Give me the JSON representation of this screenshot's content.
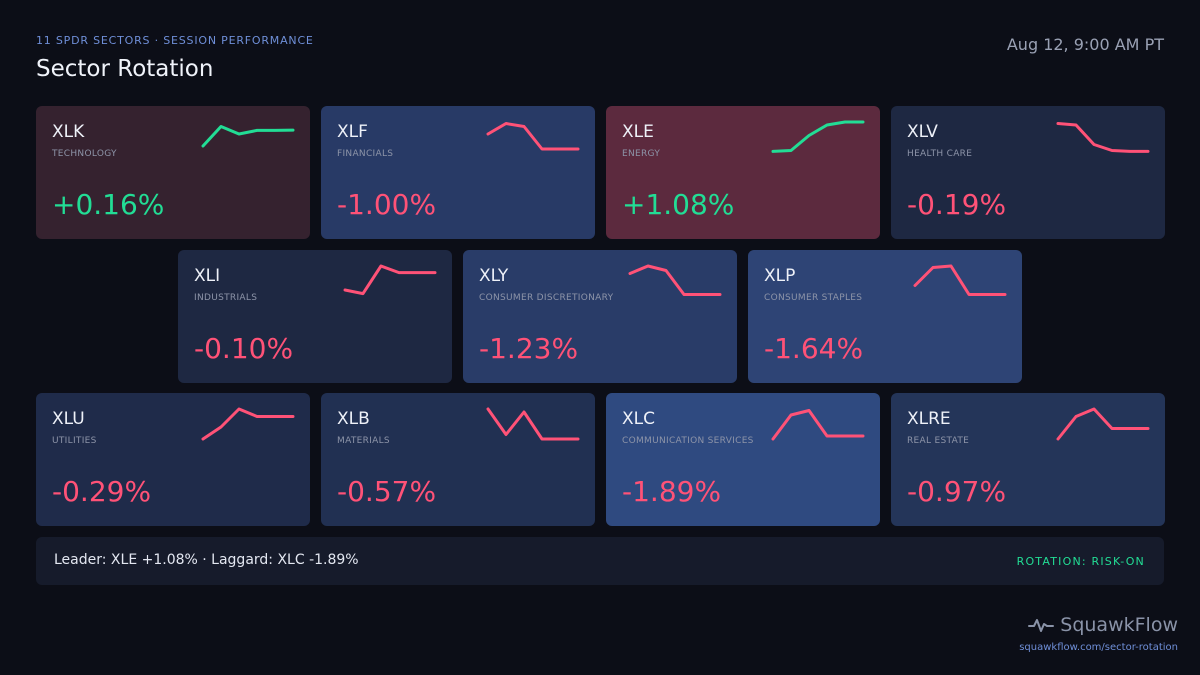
{
  "header": {
    "eyebrow": "11 SPDR SECTORS · SESSION PERFORMANCE",
    "title": "Sector Rotation",
    "timestamp": "Aug 12, 9:00 AM PT"
  },
  "colors": {
    "up": "#22dd95",
    "down": "#ff5277"
  },
  "tiles": [
    {
      "ticker": "XLK",
      "sector": "TECHNOLOGY",
      "change": "+0.16%",
      "direction": "up",
      "bg": "#35222f",
      "spark": [
        0.2,
        0.85,
        0.6,
        0.72,
        0.72,
        0.73
      ]
    },
    {
      "ticker": "XLF",
      "sector": "FINANCIALS",
      "change": "-1.00%",
      "direction": "down",
      "bg": "#283a66",
      "spark": [
        0.6,
        0.95,
        0.85,
        0.1,
        0.1,
        0.1
      ]
    },
    {
      "ticker": "XLE",
      "sector": "ENERGY",
      "change": "+1.08%",
      "direction": "up",
      "bg": "#5c2a3e",
      "spark": [
        0.02,
        0.05,
        0.55,
        0.9,
        1.0,
        1.0
      ]
    },
    {
      "ticker": "XLV",
      "sector": "HEALTH CARE",
      "change": "-0.19%",
      "direction": "down",
      "bg": "#1e2842",
      "spark": [
        0.95,
        0.9,
        0.25,
        0.05,
        0.02,
        0.02
      ]
    },
    {
      "ticker": "XLI",
      "sector": "INDUSTRIALS",
      "change": "-0.10%",
      "direction": "down",
      "bg": "#1e2842",
      "spark": [
        0.2,
        0.08,
        1.0,
        0.78,
        0.78,
        0.78
      ]
    },
    {
      "ticker": "XLY",
      "sector": "CONSUMER DISCRETIONARY",
      "change": "-1.23%",
      "direction": "down",
      "bg": "#293c68",
      "spark": [
        0.75,
        1.0,
        0.85,
        0.05,
        0.05,
        0.05
      ]
    },
    {
      "ticker": "XLP",
      "sector": "CONSUMER STAPLES",
      "change": "-1.64%",
      "direction": "down",
      "bg": "#2e4475",
      "spark": [
        0.35,
        0.95,
        1.0,
        0.05,
        0.05,
        0.05
      ]
    },
    {
      "ticker": "XLU",
      "sector": "UTILITIES",
      "change": "-0.29%",
      "direction": "down",
      "bg": "#1f2b4a",
      "spark": [
        0.0,
        0.4,
        1.0,
        0.75,
        0.75,
        0.75
      ]
    },
    {
      "ticker": "XLB",
      "sector": "MATERIALS",
      "change": "-0.57%",
      "direction": "down",
      "bg": "#213052",
      "spark": [
        1.0,
        0.15,
        0.9,
        0.0,
        0.0,
        0.0
      ]
    },
    {
      "ticker": "XLC",
      "sector": "COMMUNICATION SERVICES",
      "change": "-1.89%",
      "direction": "down",
      "bg": "#2f4a80",
      "spark": [
        0.0,
        0.8,
        0.95,
        0.1,
        0.1,
        0.1
      ]
    },
    {
      "ticker": "XLRE",
      "sector": "REAL ESTATE",
      "change": "-0.97%",
      "direction": "down",
      "bg": "#243559",
      "spark": [
        0.0,
        0.75,
        1.0,
        0.35,
        0.35,
        0.35
      ]
    }
  ],
  "footer": {
    "summary": "Leader: XLE +1.08% · Laggard: XLC -1.89%",
    "rotation": "ROTATION: RISK-ON"
  },
  "brand": {
    "name": "SquawkFlow",
    "url": "squawkflow.com/sector-rotation",
    "icon": "pulse-icon"
  }
}
